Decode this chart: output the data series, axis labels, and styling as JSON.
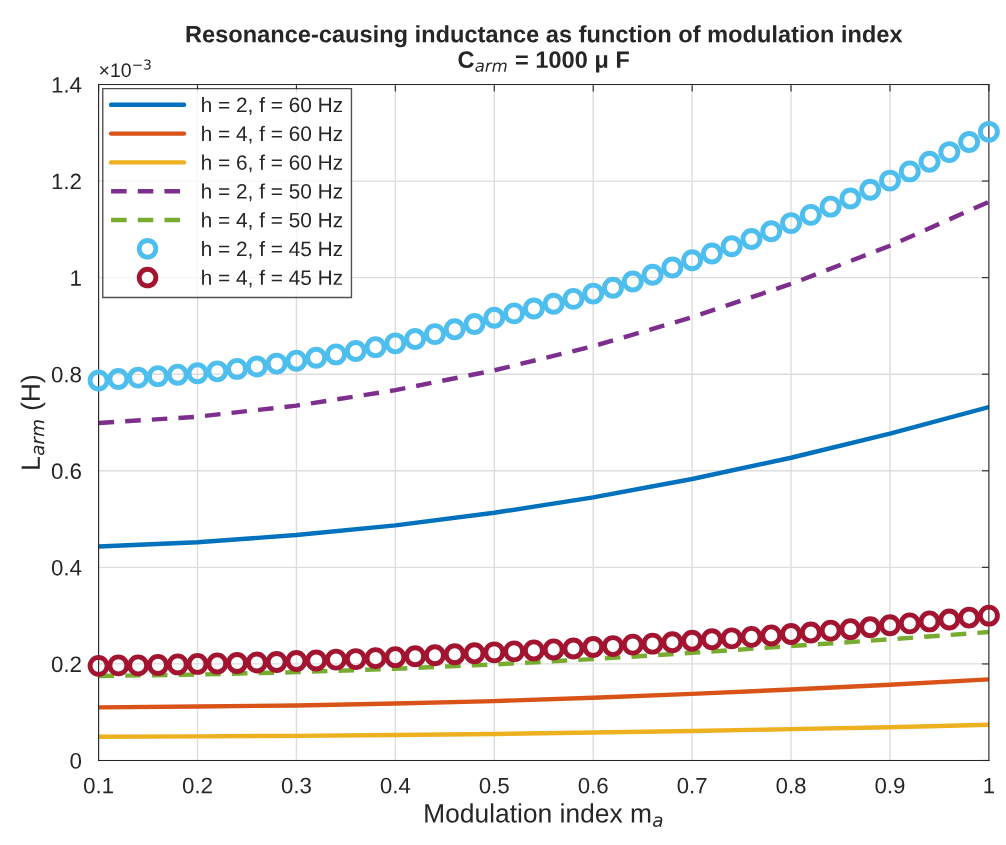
{
  "chart_data": {
    "type": "line",
    "title": "Resonance-causing inductance as function of modulation index\nC$_{arm}$ = 1000 μ F",
    "xlabel": "Modulation index m$_{a}$",
    "ylabel": "L$_{arm}$ (H)",
    "annotations": [
      "×10$^{−3}$"
    ],
    "xlim": [
      0.1,
      1
    ],
    "ylim": [
      0,
      1.4
    ],
    "xticks": [
      0.1,
      0.2,
      0.3,
      0.4,
      0.5,
      0.6,
      0.7,
      0.8,
      0.9,
      1
    ],
    "yticks": [
      0,
      0.2,
      0.4,
      0.6,
      0.8,
      1,
      1.2,
      1.4
    ],
    "grid": true,
    "legend": "top left",
    "series": [
      {
        "name": "h = 2, f = 60 Hz",
        "line_style": "solid",
        "color": "#0072bd",
        "x": [
          0.1,
          0.2,
          0.3,
          0.4,
          0.5,
          0.6,
          0.7,
          0.8,
          0.9,
          1.0
        ],
        "values": [
          0.443,
          0.452,
          0.467,
          0.487,
          0.513,
          0.545,
          0.583,
          0.627,
          0.677,
          0.732
        ]
      },
      {
        "name": "h = 4, f = 60 Hz",
        "line_style": "solid",
        "color": "#d95319",
        "x": [
          0.1,
          0.2,
          0.3,
          0.4,
          0.5,
          0.6,
          0.7,
          0.8,
          0.9,
          1.0
        ],
        "values": [
          0.11,
          0.112,
          0.114,
          0.118,
          0.123,
          0.13,
          0.138,
          0.147,
          0.157,
          0.168
        ]
      },
      {
        "name": "h = 6, f = 60 Hz",
        "line_style": "solid",
        "color": "#edb120",
        "x": [
          0.1,
          0.2,
          0.3,
          0.4,
          0.5,
          0.6,
          0.7,
          0.8,
          0.9,
          1.0
        ],
        "values": [
          0.049,
          0.05,
          0.051,
          0.053,
          0.055,
          0.058,
          0.061,
          0.065,
          0.069,
          0.074
        ]
      },
      {
        "name": "h = 2, f = 50 Hz",
        "line_style": "dashed",
        "color": "#7e2f8e",
        "x": [
          0.1,
          0.2,
          0.3,
          0.4,
          0.5,
          0.6,
          0.7,
          0.8,
          0.9,
          1.0
        ],
        "values": [
          0.699,
          0.712,
          0.735,
          0.767,
          0.808,
          0.858,
          0.918,
          0.987,
          1.066,
          1.157
        ]
      },
      {
        "name": "h = 4, f = 50 Hz",
        "line_style": "dashed",
        "color": "#77ac30",
        "x": [
          0.1,
          0.2,
          0.3,
          0.4,
          0.5,
          0.6,
          0.7,
          0.8,
          0.9,
          1.0
        ],
        "values": [
          0.175,
          0.178,
          0.183,
          0.19,
          0.199,
          0.21,
          0.223,
          0.237,
          0.251,
          0.266
        ]
      },
      {
        "name": "h = 2, f = 45 Hz",
        "type": "scatter",
        "marker": "circle",
        "color": "#4dbeee",
        "x": [
          0.1,
          0.12,
          0.14,
          0.16,
          0.18,
          0.2,
          0.22,
          0.24,
          0.26,
          0.28,
          0.3,
          0.32,
          0.34,
          0.36,
          0.38,
          0.4,
          0.42,
          0.44,
          0.46,
          0.48,
          0.5,
          0.52,
          0.54,
          0.56,
          0.58,
          0.6,
          0.62,
          0.64,
          0.66,
          0.68,
          0.7,
          0.72,
          0.74,
          0.76,
          0.78,
          0.8,
          0.82,
          0.84,
          0.86,
          0.88,
          0.9,
          0.92,
          0.94,
          0.96,
          0.98,
          1.0
        ],
        "values": [
          0.787,
          0.79,
          0.793,
          0.796,
          0.799,
          0.802,
          0.806,
          0.811,
          0.816,
          0.822,
          0.828,
          0.834,
          0.841,
          0.848,
          0.856,
          0.864,
          0.873,
          0.883,
          0.893,
          0.904,
          0.917,
          0.926,
          0.936,
          0.946,
          0.956,
          0.967,
          0.979,
          0.992,
          1.006,
          1.021,
          1.036,
          1.05,
          1.065,
          1.08,
          1.096,
          1.113,
          1.13,
          1.147,
          1.164,
          1.182,
          1.201,
          1.22,
          1.24,
          1.26,
          1.281,
          1.302
        ]
      },
      {
        "name": "h = 4, f = 45 Hz",
        "type": "scatter",
        "marker": "circle",
        "color": "#a2142f",
        "x": [
          0.1,
          0.12,
          0.14,
          0.16,
          0.18,
          0.2,
          0.22,
          0.24,
          0.26,
          0.28,
          0.3,
          0.32,
          0.34,
          0.36,
          0.38,
          0.4,
          0.42,
          0.44,
          0.46,
          0.48,
          0.5,
          0.52,
          0.54,
          0.56,
          0.58,
          0.6,
          0.62,
          0.64,
          0.66,
          0.68,
          0.7,
          0.72,
          0.74,
          0.76,
          0.78,
          0.8,
          0.82,
          0.84,
          0.86,
          0.88,
          0.9,
          0.92,
          0.94,
          0.96,
          0.98,
          1.0
        ],
        "values": [
          0.196,
          0.197,
          0.197,
          0.198,
          0.199,
          0.2,
          0.201,
          0.202,
          0.203,
          0.204,
          0.206,
          0.207,
          0.209,
          0.21,
          0.212,
          0.214,
          0.216,
          0.218,
          0.22,
          0.222,
          0.224,
          0.226,
          0.228,
          0.23,
          0.232,
          0.235,
          0.237,
          0.24,
          0.242,
          0.245,
          0.248,
          0.251,
          0.253,
          0.256,
          0.259,
          0.262,
          0.265,
          0.269,
          0.272,
          0.276,
          0.28,
          0.284,
          0.288,
          0.292,
          0.296,
          0.3
        ]
      }
    ]
  }
}
